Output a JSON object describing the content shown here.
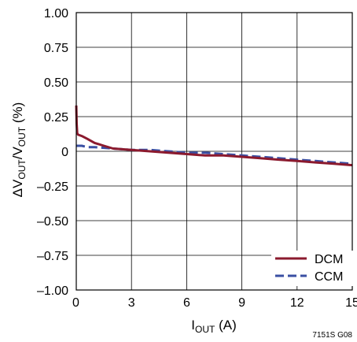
{
  "chart_data": {
    "type": "line",
    "ylabel_parts": [
      "ΔV",
      "OUT",
      "/V",
      "OUT",
      " (%)"
    ],
    "xlabel_parts": [
      "I",
      "OUT",
      " (A)"
    ],
    "xlim": [
      0,
      15
    ],
    "ylim": [
      -1.0,
      1.0
    ],
    "x_ticks": [
      0,
      3,
      6,
      9,
      12,
      15
    ],
    "x_tick_labels": [
      "0",
      "3",
      "6",
      "9",
      "12",
      "15"
    ],
    "y_ticks": [
      1.0,
      0.75,
      0.5,
      0.25,
      0,
      -0.25,
      -0.5,
      -0.75,
      -1.0
    ],
    "y_tick_labels": [
      "1.00",
      "0.75",
      "0.50",
      "0.25",
      "0",
      "–0.25",
      "–0.50",
      "–0.75",
      "–1.00"
    ],
    "grid": true,
    "legend_position": "bottom-right",
    "series": [
      {
        "name": "DCM",
        "color": "#8b1a2e",
        "style": "solid",
        "x": [
          0,
          0.02,
          0.05,
          0.1,
          0.3,
          0.6,
          1.0,
          1.5,
          2.0,
          3.0,
          4.0,
          5.0,
          6.0,
          7.0,
          8.0,
          9.0,
          10.0,
          11.0,
          12.0,
          13.0,
          14.0,
          15.0
        ],
        "y": [
          0.33,
          0.2,
          0.13,
          0.12,
          0.11,
          0.09,
          0.06,
          0.04,
          0.02,
          0.01,
          0.0,
          -0.01,
          -0.02,
          -0.03,
          -0.03,
          -0.04,
          -0.05,
          -0.06,
          -0.07,
          -0.08,
          -0.09,
          -0.1
        ]
      },
      {
        "name": "CCM",
        "color": "#3a4fa3",
        "style": "dashed",
        "x": [
          0,
          0.3,
          0.6,
          1.0,
          2.0,
          3.0,
          4.0,
          5.0,
          6.0,
          7.0,
          8.0,
          9.0,
          10.0,
          11.0,
          12.0,
          13.0,
          14.0,
          15.0
        ],
        "y": [
          0.04,
          0.04,
          0.03,
          0.03,
          0.02,
          0.01,
          0.01,
          0.0,
          -0.01,
          -0.01,
          -0.02,
          -0.03,
          -0.04,
          -0.05,
          -0.06,
          -0.07,
          -0.08,
          -0.09
        ]
      }
    ]
  },
  "figure_code": "7151S G08"
}
